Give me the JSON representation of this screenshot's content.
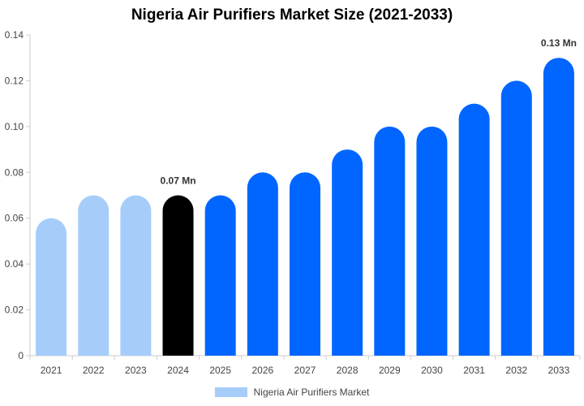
{
  "chart_data": {
    "type": "bar",
    "title": "Nigeria Air Purifiers Market Size (2021-2033)",
    "xlabel": "",
    "ylabel": "",
    "categories": [
      "2021",
      "2022",
      "2023",
      "2024",
      "2025",
      "2026",
      "2027",
      "2028",
      "2029",
      "2030",
      "2031",
      "2032",
      "2033"
    ],
    "series": [
      {
        "name": "Nigeria Air Purifiers Market",
        "values": [
          0.06,
          0.07,
          0.07,
          0.07,
          0.07,
          0.08,
          0.08,
          0.09,
          0.1,
          0.1,
          0.11,
          0.12,
          0.13
        ]
      }
    ],
    "ylim": [
      0,
      0.14
    ],
    "yticks": [
      "0",
      "0.02",
      "0.04",
      "0.06",
      "0.08",
      "0.10",
      "0.12",
      "0.14"
    ],
    "data_labels": [
      {
        "category": "2024",
        "text": "0.07 Mn"
      },
      {
        "category": "2033",
        "text": "0.13 Mn"
      }
    ],
    "bar_colors": {
      "historical": "#a6cdfa",
      "base_year": "#000000",
      "forecast": "#0066ff"
    },
    "historical_categories": [
      "2021",
      "2022",
      "2023"
    ],
    "base_year_category": "2024",
    "legend": {
      "label": "Nigeria Air Purifiers Market",
      "color": "#a6cdfa",
      "placement": "bottom"
    },
    "grid": false
  }
}
